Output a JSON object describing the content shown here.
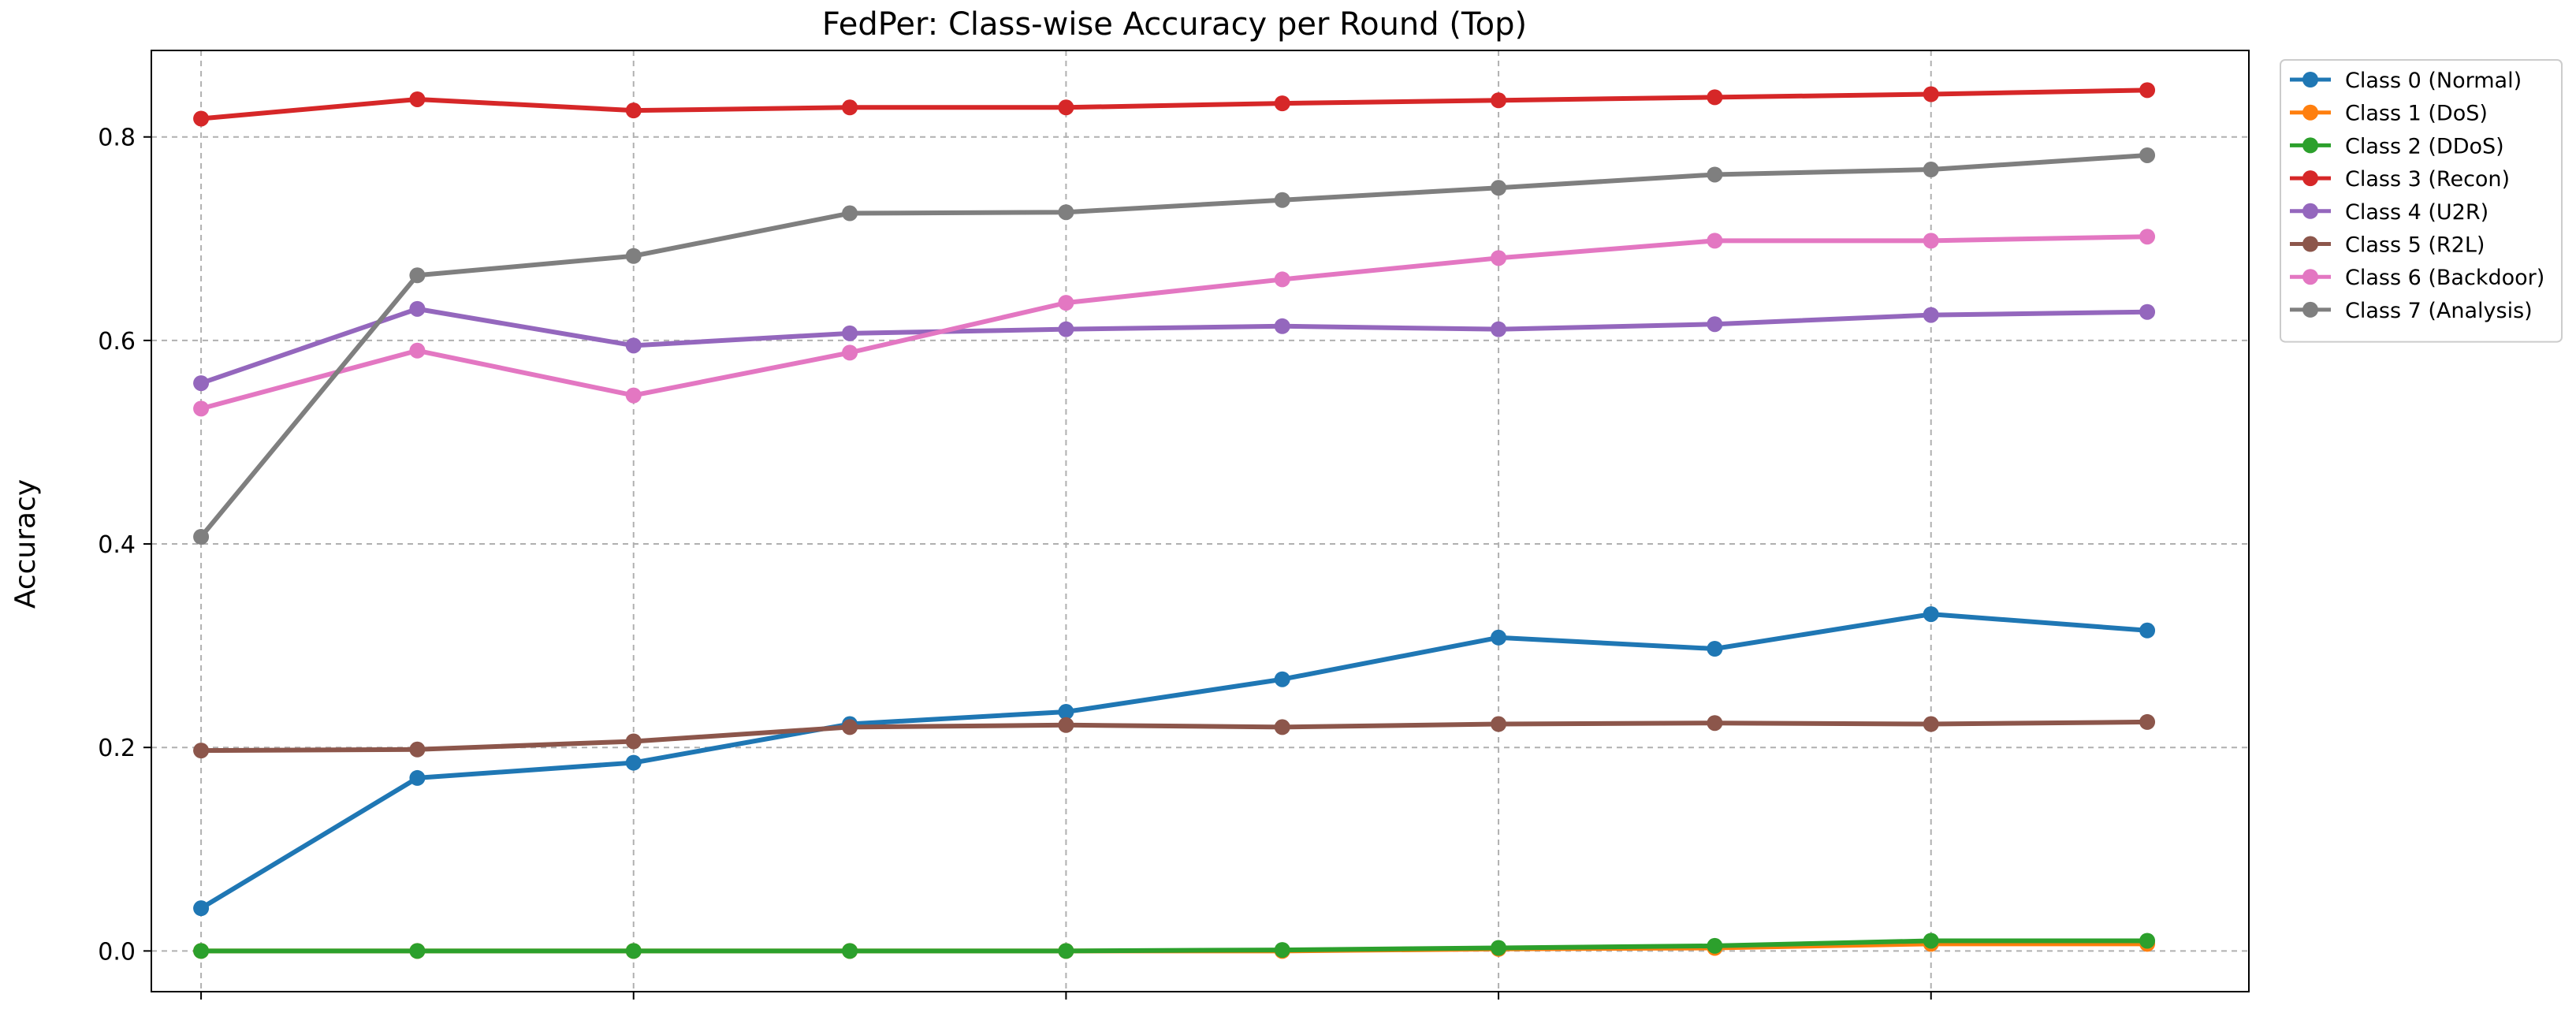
{
  "chart_data": {
    "type": "line",
    "title": "FedPer: Class-wise Accuracy per Round (Top)",
    "xlabel": "",
    "ylabel": "Accuracy",
    "x": [
      1,
      2,
      3,
      4,
      5,
      6,
      7,
      8,
      9,
      10
    ],
    "xlim": [
      0.77,
      10.47
    ],
    "ylim": [
      -0.04,
      0.885
    ],
    "yticks": [
      0.0,
      0.2,
      0.4,
      0.6,
      0.8
    ],
    "ytick_labels": [
      "0.0",
      "0.2",
      "0.4",
      "0.6",
      "0.8"
    ],
    "xticks": [
      1,
      3,
      5,
      7,
      9
    ],
    "grid": true,
    "legend_position": "outside-top-right",
    "series": [
      {
        "name": "Class 0 (Normal)",
        "color": "#1f77b4",
        "values": [
          0.042,
          0.17,
          0.185,
          0.223,
          0.235,
          0.267,
          0.308,
          0.297,
          0.331,
          0.315
        ]
      },
      {
        "name": "Class 1 (DoS)",
        "color": "#ff7f0e",
        "values": [
          0.0,
          0.0,
          0.0,
          0.0,
          0.0,
          0.0,
          0.002,
          0.003,
          0.007,
          0.007
        ]
      },
      {
        "name": "Class 2 (DDoS)",
        "color": "#2ca02c",
        "values": [
          0.0,
          0.0,
          0.0,
          0.0,
          0.0,
          0.001,
          0.003,
          0.005,
          0.01,
          0.01
        ]
      },
      {
        "name": "Class 3 (Recon)",
        "color": "#d62728",
        "values": [
          0.818,
          0.837,
          0.826,
          0.829,
          0.829,
          0.833,
          0.836,
          0.839,
          0.842,
          0.846
        ]
      },
      {
        "name": "Class 4 (U2R)",
        "color": "#9467bd",
        "values": [
          0.558,
          0.631,
          0.595,
          0.607,
          0.611,
          0.614,
          0.611,
          0.616,
          0.625,
          0.628
        ]
      },
      {
        "name": "Class 5 (R2L)",
        "color": "#8c564b",
        "values": [
          0.197,
          0.198,
          0.206,
          0.22,
          0.222,
          0.22,
          0.223,
          0.224,
          0.223,
          0.225
        ]
      },
      {
        "name": "Class 6 (Backdoor)",
        "color": "#e377c2",
        "values": [
          0.533,
          0.59,
          0.546,
          0.588,
          0.637,
          0.66,
          0.681,
          0.698,
          0.698,
          0.702
        ]
      },
      {
        "name": "Class 7 (Analysis)",
        "color": "#7f7f7f",
        "values": [
          0.407,
          0.664,
          0.683,
          0.725,
          0.726,
          0.738,
          0.75,
          0.763,
          0.768,
          0.782
        ]
      }
    ]
  }
}
